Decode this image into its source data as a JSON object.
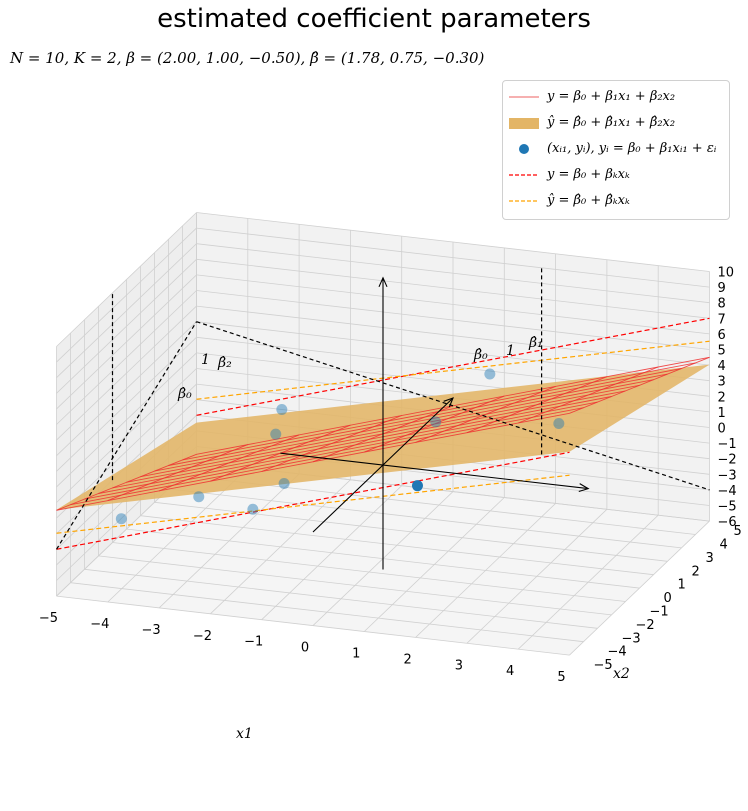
{
  "chart_data": {
    "type": "surface3d",
    "title": "estimated coefficient parameters",
    "subtitle": "N = 10, K = 2, β = (2.00, 1.00, −0.50), β̂ = (1.78, 0.75, −0.30)",
    "N": 10,
    "K": 2,
    "beta": [
      2.0,
      1.0,
      -0.5
    ],
    "beta_hat": [
      1.78,
      0.75,
      -0.3
    ],
    "xlabel": "x1",
    "ylabel": "x2",
    "xlim": [
      -5,
      5
    ],
    "ylim": [
      -5,
      5
    ],
    "zlim": [
      -6,
      10
    ],
    "x_ticks": [
      "−5",
      "−4",
      "−3",
      "−2",
      "−1",
      "0",
      "1",
      "2",
      "3",
      "4",
      "5"
    ],
    "y_ticks": [
      "−5",
      "−4",
      "−3",
      "−2",
      "−1",
      "0",
      "1",
      "2",
      "3",
      "4",
      "5"
    ],
    "z_ticks": [
      "−6",
      "−5",
      "−4",
      "−3",
      "−2",
      "−1",
      "0",
      "1",
      "2",
      "3",
      "4",
      "5",
      "6",
      "7",
      "8",
      "9",
      "10"
    ],
    "points": [
      {
        "x1": -4.2,
        "x2": -3.3,
        "y": -2.2
      },
      {
        "x1": -2.8,
        "x2": -2.9,
        "y": -0.6
      },
      {
        "x1": -1.8,
        "x2": -2.7,
        "y": -1.2
      },
      {
        "x1": -1.3,
        "x2": -2.3,
        "y": 0.3
      },
      {
        "x1": -2.2,
        "x2": 0.4,
        "y": 0.8
      },
      {
        "x1": -2.6,
        "x2": 2.3,
        "y": 0.6
      },
      {
        "x1": 0.7,
        "x2": 1.2,
        "y": 2.0
      },
      {
        "x1": 1.6,
        "x2": -3.4,
        "y": 2.2
      },
      {
        "x1": 3.1,
        "x2": 1.2,
        "y": 2.8
      },
      {
        "x1": 0.8,
        "x2": 4.7,
        "y": 2.1
      }
    ],
    "legend": {
      "position": "top-right",
      "entries": [
        {
          "label": "y = β₀ + β₁x₁ + β₂x₂",
          "color": "#f08080"
        },
        {
          "label": "ŷ = β̂₀ + β̂₁x₁ + β̂₂x₂",
          "color": "#e0b060"
        },
        {
          "label": "(xᵢ₁, yᵢ), yᵢ = β₀ + β₁xᵢ₁ + εᵢ",
          "color": "#1f77b4"
        },
        {
          "label": "y = β₀ + βₖxₖ",
          "color": "#ff0000"
        },
        {
          "label": "ŷ = β̂₀ + β̂ₖxₖ",
          "color": "#ffa500"
        }
      ]
    },
    "annotations": [
      "β̂₀",
      "β̂₀",
      "β̂₁",
      "β̂₂",
      "1",
      "1"
    ],
    "colors": {
      "true_plane": "#ee3030",
      "est_plane": "#e3b566",
      "points": "#1f77b4",
      "true_line": "#ff0000",
      "est_line": "#ffa500",
      "pane": "#f2f2f2",
      "grid": "#d0d0d0"
    }
  }
}
